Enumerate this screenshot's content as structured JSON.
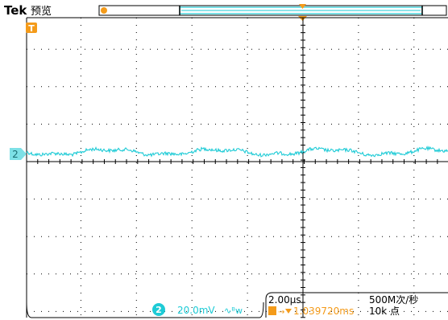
{
  "header": {
    "brand": "Tek",
    "mode": "预览"
  },
  "markers": {
    "trigger_symbol": "T",
    "channel_badge": "2"
  },
  "channel": {
    "number": "2",
    "scale": "20.0mV",
    "coupling_symbol": "∿ᴮw"
  },
  "timebase": {
    "time_per_div": "2.00μs",
    "sample_rate": "500M次/秒",
    "trigger_position": "1.039720ms",
    "record_length": "10k 点"
  },
  "colors": {
    "trace": "#1ecbd6",
    "marker": "#f49b1a",
    "graticule": "#000000",
    "background": "#ffffff"
  },
  "trace": {
    "channel": "2",
    "description": "low-amplitude noisy ripple around channel 2 ground reference"
  }
}
